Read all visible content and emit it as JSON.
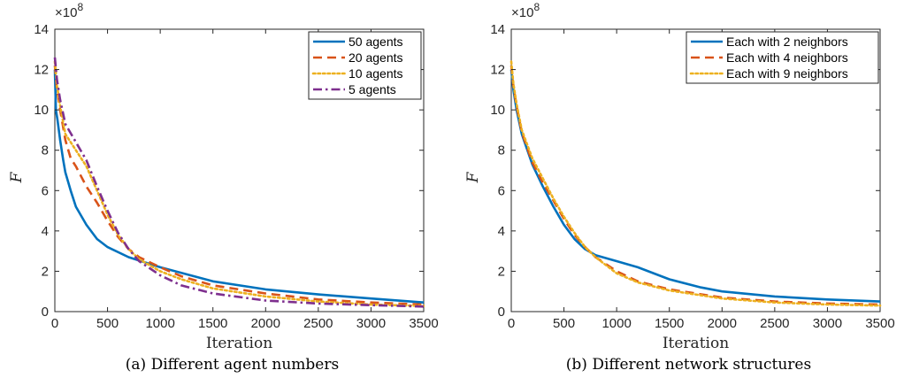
{
  "chart_data": [
    {
      "type": "line",
      "caption": "(a)  Different agent numbers",
      "xlabel": "Iteration",
      "ylabel": "F",
      "y_exponent": "×10",
      "y_exponent_power": "8",
      "xlim": [
        0,
        3500
      ],
      "ylim": [
        0,
        14
      ],
      "xticks": [
        "0",
        "500",
        "1000",
        "1500",
        "2000",
        "2500",
        "3000",
        "3500"
      ],
      "yticks": [
        "0",
        "2",
        "4",
        "6",
        "8",
        "10",
        "12",
        "14"
      ],
      "grid": false,
      "legend_position": "top-right",
      "series": [
        {
          "name": "50 agents",
          "color": "#0072BD",
          "dash": "solid",
          "x": [
            0,
            10,
            25,
            50,
            80,
            100,
            150,
            200,
            300,
            400,
            500,
            700,
            1000,
            1500,
            2000,
            2500,
            3000,
            3500
          ],
          "y": [
            12.0,
            10.0,
            9.5,
            8.5,
            7.5,
            6.9,
            6.0,
            5.2,
            4.3,
            3.6,
            3.2,
            2.7,
            2.2,
            1.5,
            1.1,
            0.85,
            0.65,
            0.45
          ]
        },
        {
          "name": "20 agents",
          "color": "#D95319",
          "dash": "dashed",
          "x": [
            0,
            20,
            50,
            100,
            150,
            200,
            300,
            400,
            500,
            600,
            700,
            800,
            1000,
            1200,
            1500,
            2000,
            2500,
            3000,
            3500
          ],
          "y": [
            12.2,
            11.0,
            10.0,
            8.5,
            7.6,
            7.2,
            6.2,
            5.4,
            4.5,
            3.7,
            3.1,
            2.7,
            2.2,
            1.75,
            1.3,
            0.9,
            0.6,
            0.45,
            0.35
          ]
        },
        {
          "name": "10 agents",
          "color": "#EDB120",
          "dash": "dotted",
          "x": [
            0,
            20,
            50,
            100,
            200,
            300,
            400,
            500,
            600,
            700,
            800,
            1000,
            1200,
            1500,
            2000,
            2500,
            3000,
            3500
          ],
          "y": [
            12.4,
            11.2,
            10.2,
            8.8,
            8.0,
            7.2,
            6.0,
            4.8,
            3.8,
            3.1,
            2.6,
            2.0,
            1.6,
            1.15,
            0.75,
            0.5,
            0.35,
            0.28
          ]
        },
        {
          "name": "5 agents",
          "color": "#7E2F8E",
          "dash": "dashdot",
          "x": [
            0,
            20,
            50,
            100,
            200,
            300,
            400,
            500,
            600,
            700,
            800,
            1000,
            1200,
            1500,
            2000,
            2500,
            3000,
            3500
          ],
          "y": [
            12.6,
            11.5,
            10.5,
            9.3,
            8.4,
            7.5,
            6.2,
            5.0,
            3.9,
            3.1,
            2.5,
            1.8,
            1.3,
            0.9,
            0.55,
            0.4,
            0.32,
            0.25
          ]
        }
      ]
    },
    {
      "type": "line",
      "caption": "(b)  Different network structures",
      "xlabel": "Iteration",
      "ylabel": "F",
      "y_exponent": "×10",
      "y_exponent_power": "8",
      "xlim": [
        0,
        3500
      ],
      "ylim": [
        0,
        14
      ],
      "xticks": [
        "0",
        "500",
        "1000",
        "1500",
        "2000",
        "2500",
        "3000",
        "3500"
      ],
      "yticks": [
        "0",
        "2",
        "4",
        "6",
        "8",
        "10",
        "12",
        "14"
      ],
      "grid": false,
      "legend_position": "top-right",
      "series": [
        {
          "name": "Each with 2 neighbors",
          "color": "#0072BD",
          "dash": "solid",
          "x": [
            0,
            20,
            50,
            100,
            200,
            300,
            400,
            500,
            600,
            700,
            800,
            1000,
            1200,
            1500,
            1800,
            2000,
            2500,
            3000,
            3500
          ],
          "y": [
            12.0,
            11.0,
            10.0,
            8.8,
            7.3,
            6.2,
            5.2,
            4.3,
            3.6,
            3.1,
            2.8,
            2.5,
            2.2,
            1.6,
            1.2,
            1.0,
            0.75,
            0.6,
            0.5
          ]
        },
        {
          "name": "Each with 4 neighbors",
          "color": "#D95319",
          "dash": "dashed",
          "x": [
            0,
            20,
            50,
            100,
            200,
            300,
            400,
            500,
            600,
            700,
            800,
            1000,
            1200,
            1500,
            2000,
            2500,
            3000,
            3500
          ],
          "y": [
            12.2,
            11.2,
            10.2,
            8.9,
            7.4,
            6.4,
            5.5,
            4.6,
            3.8,
            3.2,
            2.7,
            2.0,
            1.5,
            1.1,
            0.7,
            0.5,
            0.4,
            0.35
          ]
        },
        {
          "name": "Each with 9 neighbors",
          "color": "#EDB120",
          "dash": "dotted",
          "x": [
            0,
            20,
            50,
            100,
            200,
            300,
            400,
            500,
            600,
            700,
            800,
            1000,
            1200,
            1500,
            2000,
            2500,
            3000,
            3500
          ],
          "y": [
            12.4,
            11.3,
            10.3,
            9.0,
            7.6,
            6.6,
            5.6,
            4.7,
            3.9,
            3.2,
            2.7,
            1.9,
            1.45,
            1.05,
            0.65,
            0.45,
            0.35,
            0.3
          ]
        }
      ]
    }
  ]
}
